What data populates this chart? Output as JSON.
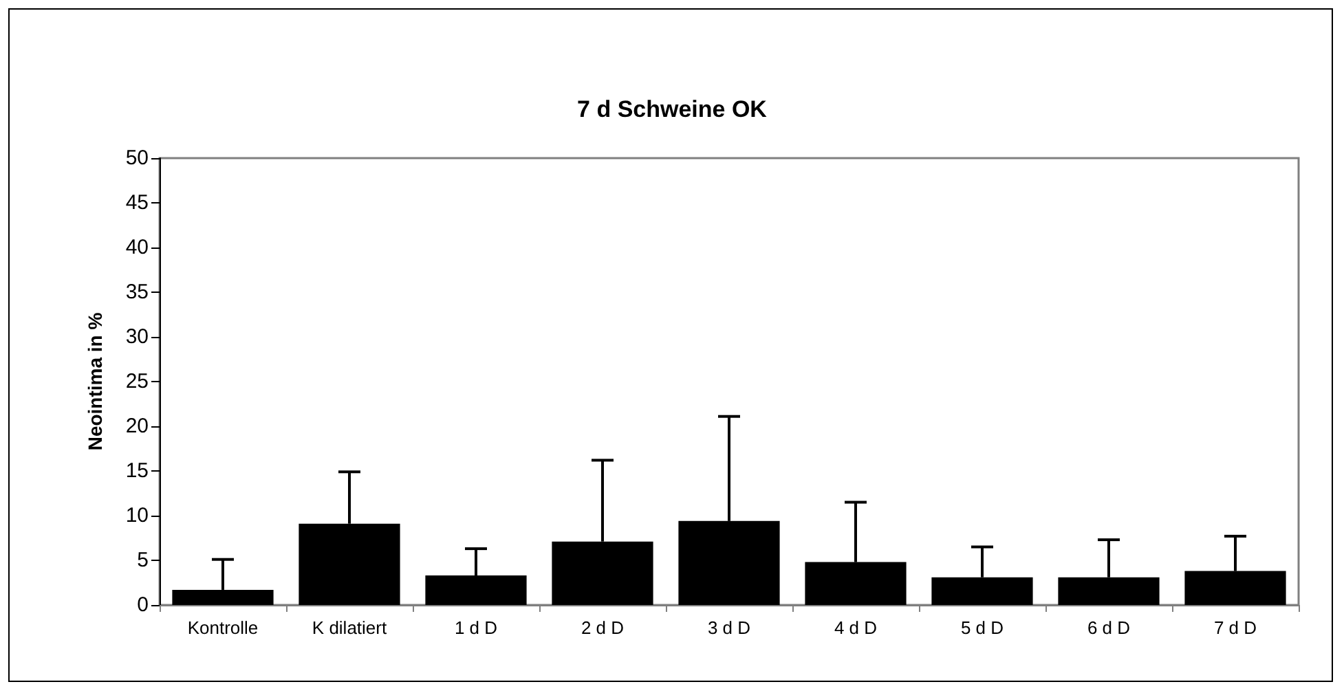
{
  "chart_data": {
    "type": "bar",
    "title": "7 d Schweine OK",
    "ylabel": "Neointima in %",
    "categories": [
      "Kontrolle",
      "K dilatiert",
      "1 d D",
      "2 d D",
      "3 d D",
      "4 d D",
      "5 d D",
      "6 d D",
      "7 d D"
    ],
    "values": [
      1.7,
      9.1,
      3.3,
      7.1,
      9.4,
      4.8,
      3.1,
      3.1,
      3.8
    ],
    "errors": [
      [
        1.7,
        5.1
      ],
      [
        9.1,
        14.9
      ],
      [
        3.3,
        6.3
      ],
      [
        7.1,
        16.2
      ],
      [
        9.4,
        21.1
      ],
      [
        4.8,
        11.5
      ],
      [
        3.1,
        6.5
      ],
      [
        3.1,
        7.3
      ],
      [
        3.8,
        7.7
      ]
    ],
    "color": "#000000",
    "ylim": [
      0,
      50
    ],
    "yticks": [
      0,
      5,
      10,
      15,
      20,
      25,
      30,
      35,
      40,
      45,
      50
    ],
    "grid": false
  }
}
